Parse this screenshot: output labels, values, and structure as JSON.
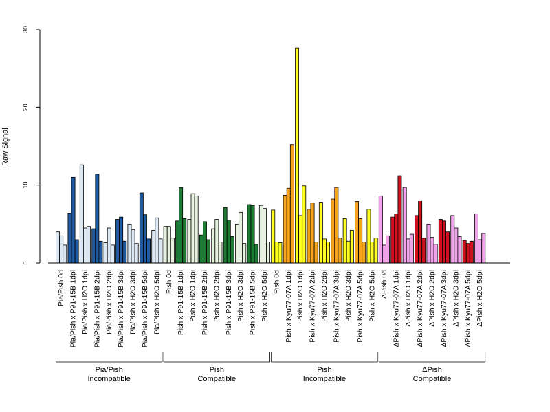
{
  "chart_data": {
    "type": "bar",
    "ylabel": "Raw Signal",
    "ylim": [
      0,
      30
    ],
    "yticks": [
      0,
      10,
      20,
      30
    ],
    "categories": [
      "Pia/Pish 0d",
      "Pia/Pish x P91-15B 1dpi",
      "Pia/Pish x H2O 1dpi",
      "Pia/Pish x P91-15B 2dpi",
      "Pia/Pish x H2O 2dpi",
      "Pia/Pish x P91-15B 3dpi",
      "Pia/Pish x H2O 3dpi",
      "Pia/Pish x P91-15B 5dpi",
      "Pia/Pish x H2O 5dpi",
      "Pish 0d",
      "Pish x P91-15B 1dpi",
      "Pish x H2O 1dpi",
      "Pish x P91-15B 2dpi",
      "Pish x H2O 2dpi",
      "Pish x P91-15B 3dpi",
      "Pish x H2O 3dpi",
      "Pish x P91-15B 5dpi",
      "Pish x H2O 5dpi",
      "Pish 0d",
      "Pish x Kyu77-07A 1dpi",
      "Pish x H2O 1dpi",
      "Pish x Kyu77-07A 2dpi",
      "Pish x H2O 2dpi",
      "Pish x Kyu77-07A 3dpi",
      "Pish x H2O 3dpi",
      "Pish x Kyu77-07A 5dpi",
      "Pish x H2O 5dpi",
      "ΔPish 0d",
      "ΔPish x Kyu77-07A 1dpi",
      "ΔPish x H2O 1dpi",
      "ΔPish x Kyu77-07A 2dpi",
      "ΔPish x H2O 2dpi",
      "ΔPish x Kyu77-07A 3dpi",
      "ΔPish x H2O 3dpi",
      "ΔPish x Kyu77-07A 5dpi",
      "ΔPish x H2O 5dpi"
    ],
    "replicates": [
      [
        4.0,
        3.5,
        2.3
      ],
      [
        6.4,
        11.0,
        3.0
      ],
      [
        12.6,
        4.5,
        4.7
      ],
      [
        4.4,
        11.4,
        2.8
      ],
      [
        2.6,
        4.5,
        2.3
      ],
      [
        5.6,
        5.9,
        2.8
      ],
      [
        5.0,
        4.3,
        2.5
      ],
      [
        9.0,
        6.2,
        3.1
      ],
      [
        4.2,
        5.8,
        3.1
      ],
      [
        4.7,
        4.7,
        3.2
      ],
      [
        5.4,
        9.7,
        5.7
      ],
      [
        5.6,
        8.9,
        8.6
      ],
      [
        3.6,
        5.3,
        3.0
      ],
      [
        4.4,
        5.6,
        2.7
      ],
      [
        7.1,
        5.5,
        3.4
      ],
      [
        5.0,
        6.5,
        2.5
      ],
      [
        7.5,
        7.4,
        2.4
      ],
      [
        7.4,
        7.0,
        2.7
      ],
      [
        6.8,
        2.7,
        2.6
      ],
      [
        8.7,
        9.6,
        15.2
      ],
      [
        27.6,
        6.1,
        9.9
      ],
      [
        6.9,
        7.7,
        2.7
      ],
      [
        7.8,
        3.1,
        2.7
      ],
      [
        8.2,
        9.7,
        3.2
      ],
      [
        5.7,
        2.8,
        4.2
      ],
      [
        7.9,
        5.7,
        2.7
      ],
      [
        6.9,
        2.7,
        3.2
      ],
      [
        8.6,
        2.3,
        3.5
      ],
      [
        5.9,
        6.3,
        11.2
      ],
      [
        9.7,
        3.1,
        3.7
      ],
      [
        6.1,
        8.0,
        3.2
      ],
      [
        5.0,
        3.3,
        2.4
      ],
      [
        5.6,
        5.4,
        4.0
      ],
      [
        6.1,
        4.5,
        3.4
      ],
      [
        2.9,
        2.5,
        2.8
      ],
      [
        6.3,
        3.0,
        3.8
      ]
    ],
    "bar_colors": [
      "#dde8f5",
      "#1f5aa0",
      "#dde8f5",
      "#1f5aa0",
      "#dde8f5",
      "#1f5aa0",
      "#dde8f5",
      "#1f5aa0",
      "#dde8f5",
      "#e6f2df",
      "#1e7a32",
      "#e6f2df",
      "#1e7a32",
      "#e6f2df",
      "#1e7a32",
      "#e6f2df",
      "#1e7a32",
      "#e6f2df",
      "#ffff22",
      "#f5a41c",
      "#ffff22",
      "#f5a41c",
      "#ffff22",
      "#f5a41c",
      "#ffff22",
      "#f5a41c",
      "#ffff22",
      "#f0a2ea",
      "#d1101f",
      "#f0a2ea",
      "#d1101f",
      "#f0a2ea",
      "#d1101f",
      "#f0a2ea",
      "#d1101f",
      "#f0a2ea"
    ],
    "groups": [
      {
        "start": 0,
        "end": 8,
        "label_line1": "Pia/Pish",
        "label_line2": "Incompatible"
      },
      {
        "start": 9,
        "end": 17,
        "label_line1": "Pish",
        "label_line2": "Compatible"
      },
      {
        "start": 18,
        "end": 26,
        "label_line1": "Pish",
        "label_line2": "Incompatible"
      },
      {
        "start": 27,
        "end": 35,
        "label_line1": "ΔPish",
        "label_line2": "Compatible"
      }
    ]
  }
}
